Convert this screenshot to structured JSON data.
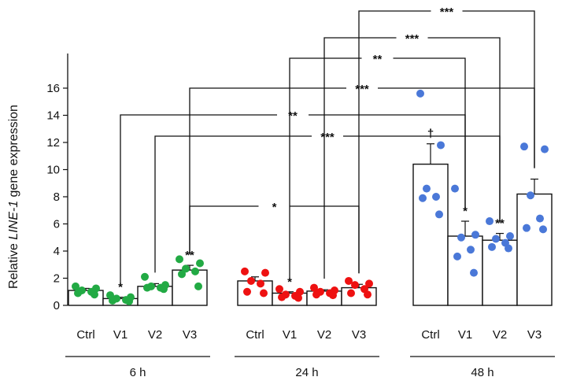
{
  "chart_data": {
    "type": "bar",
    "ylabel": {
      "before": "Relative ",
      "italic": "LINE-1",
      "after": " gene expression"
    },
    "ylim": [
      0,
      16
    ],
    "yticks": [
      0,
      2,
      4,
      6,
      8,
      10,
      12,
      14,
      16
    ],
    "groups": [
      {
        "label": "6 h",
        "bars": [
          {
            "category": "Ctrl",
            "value": 1.1,
            "error": 0.15,
            "color": "#22aa44",
            "points": [
              1.4,
              1.25,
              1.1,
              1.0,
              0.9,
              0.8
            ]
          },
          {
            "category": "V1",
            "value": 0.5,
            "error": 0.1,
            "color": "#22aa44",
            "points": [
              0.75,
              0.6,
              0.5,
              0.4,
              0.35,
              0.3
            ],
            "sig": "*"
          },
          {
            "category": "V2",
            "value": 1.4,
            "error": 0.2,
            "color": "#22aa44",
            "points": [
              2.1,
              1.5,
              1.4,
              1.3,
              1.3,
              1.2
            ]
          },
          {
            "category": "V3",
            "value": 2.6,
            "error": 0.35,
            "color": "#22aa44",
            "points": [
              3.4,
              3.1,
              2.7,
              2.5,
              2.3,
              1.4
            ],
            "sig": "**"
          }
        ]
      },
      {
        "label": "24 h",
        "bars": [
          {
            "category": "Ctrl",
            "value": 1.8,
            "error": 0.3,
            "color": "#ee1111",
            "points": [
              2.5,
              2.4,
              1.8,
              1.6,
              1.0,
              0.9
            ]
          },
          {
            "category": "V1",
            "value": 0.9,
            "error": 0.1,
            "color": "#ee1111",
            "points": [
              1.2,
              1.0,
              0.8,
              0.7,
              0.6,
              0.55
            ],
            "sig": "*"
          },
          {
            "category": "V2",
            "value": 1.05,
            "error": 0.1,
            "color": "#ee1111",
            "points": [
              1.3,
              1.1,
              1.0,
              0.9,
              0.8,
              0.75
            ]
          },
          {
            "category": "V3",
            "value": 1.3,
            "error": 0.25,
            "color": "#ee1111",
            "points": [
              1.8,
              1.6,
              1.5,
              1.2,
              0.9,
              0.8
            ]
          }
        ]
      },
      {
        "label": "48 h",
        "bars": [
          {
            "category": "Ctrl",
            "value": 10.4,
            "error": 1.5,
            "color": "#4a78d8",
            "points": [
              15.6,
              11.8,
              8.6,
              8.0,
              7.9,
              6.7
            ],
            "sig": "†"
          },
          {
            "category": "V1",
            "value": 5.1,
            "error": 1.1,
            "color": "#4a78d8",
            "points": [
              8.6,
              5.2,
              5.0,
              4.1,
              3.6,
              2.4
            ],
            "sig": "*"
          },
          {
            "category": "V2",
            "value": 4.8,
            "error": 0.5,
            "color": "#4a78d8",
            "points": [
              6.2,
              5.1,
              4.9,
              4.6,
              4.3,
              4.2
            ],
            "sig": "**"
          },
          {
            "category": "V3",
            "value": 8.2,
            "error": 1.1,
            "color": "#4a78d8",
            "points": [
              11.7,
              11.5,
              8.1,
              6.4,
              5.7,
              5.6
            ]
          }
        ]
      }
    ],
    "comparisons": [
      {
        "from": "6h-V1",
        "to": "48h-V1",
        "label": "**"
      },
      {
        "from": "6h-V2",
        "to": "48h-V2",
        "label": "***"
      },
      {
        "from": "6h-V3",
        "to": "48h-V3",
        "label": "***"
      },
      {
        "from": "6h-V3",
        "to": "24h-V3",
        "label": "*"
      },
      {
        "from": "24h-V1",
        "to": "48h-V1",
        "label": "**"
      },
      {
        "from": "24h-V2",
        "to": "48h-V2",
        "label": "***"
      },
      {
        "from": "24h-V3",
        "to": "48h-V3",
        "label": "***"
      }
    ]
  }
}
